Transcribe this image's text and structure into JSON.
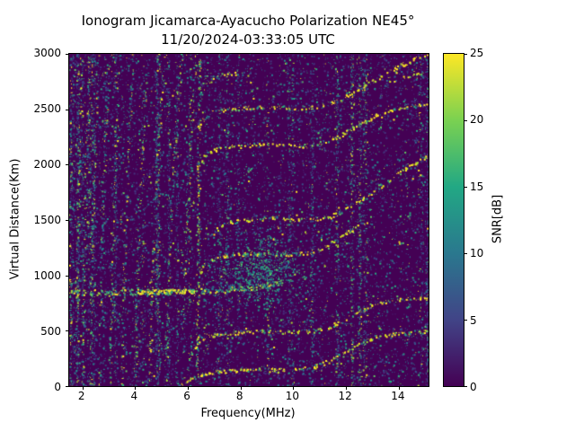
{
  "chart_data": {
    "type": "heatmap",
    "title": "Ionogram Jicamarca-Ayacucho Polarization NE45°",
    "subtitle": "11/20/2024-03:33:05 UTC",
    "xlabel": "Frequency(MHz)",
    "ylabel": "Virtual Distance(Km)",
    "xlim": [
      1.5,
      15.13
    ],
    "ylim": [
      0,
      3000
    ],
    "x_ticks": [
      2,
      4,
      6,
      8,
      10,
      12,
      14
    ],
    "x_tick_labels": [
      "2",
      "4",
      "6",
      "8",
      "10",
      "12",
      "14"
    ],
    "y_ticks": [
      0,
      500,
      1000,
      1500,
      2000,
      2500,
      3000
    ],
    "y_tick_labels": [
      "0",
      "500",
      "1000",
      "1500",
      "2000",
      "2500",
      "3000"
    ],
    "grid": false,
    "legend": "none",
    "colorbar": {
      "label": "SNR[dB]",
      "min": 0,
      "max": 25,
      "tick_labels": [
        "0",
        "5",
        "10",
        "15",
        "20",
        "25"
      ],
      "gradient": [
        "#440154",
        "#414487",
        "#2a788e",
        "#22a884",
        "#7ad151",
        "#fde725"
      ]
    },
    "background_color": "#440154",
    "palettes": {
      "noise": [
        [
          "#46327e",
          0.3
        ],
        [
          "#3b528b",
          0.25
        ],
        [
          "#2c728e",
          0.18
        ],
        [
          "#21918c",
          0.1
        ],
        [
          "#28ae80",
          0.07
        ],
        [
          "#5ec962",
          0.05
        ],
        [
          "#addc30",
          0.03
        ],
        [
          "#fde725",
          0.02
        ]
      ],
      "striation": [
        [
          "#fde725",
          0.18
        ],
        [
          "#a0da39",
          0.15
        ],
        [
          "#35b779",
          0.2
        ],
        [
          "#21918c",
          0.22
        ],
        [
          "#31688e",
          0.15
        ],
        [
          "#443983",
          0.1
        ]
      ],
      "trace": [
        [
          "#fde725",
          0.55
        ],
        [
          "#d2e21b",
          0.12
        ],
        [
          "#a0da39",
          0.08
        ],
        [
          "#5ec962",
          0.08
        ],
        [
          "#28ae80",
          0.07
        ],
        [
          "#2a788e",
          0.1
        ]
      ],
      "band": [
        [
          "#fde725",
          0.25
        ],
        [
          "#a0da39",
          0.15
        ],
        [
          "#5ec962",
          0.2
        ],
        [
          "#21918c",
          0.25
        ],
        [
          "#2c728e",
          0.15
        ]
      ],
      "blob": [
        [
          "#21918c",
          0.3
        ],
        [
          "#28ae80",
          0.25
        ],
        [
          "#35b779",
          0.2
        ],
        [
          "#2c728e",
          0.15
        ],
        [
          "#5ec962",
          0.1
        ]
      ]
    },
    "noise": {
      "seed": 1337,
      "base_density": 0.055,
      "stripe_count": 50
    },
    "striations": {
      "bases": [
        1.52,
        1.75,
        2.0,
        2.3,
        2.65,
        3.05,
        3.5,
        4.0,
        4.55,
        5.15,
        5.8,
        6.35
      ],
      "lean": [
        0.02,
        0.22,
        0.26,
        0.3,
        0.34,
        0.38,
        0.42,
        0.48,
        0.55,
        0.62,
        0.5,
        0.1
      ],
      "density": [
        0.5,
        0.3,
        0.3,
        0.32,
        0.32,
        0.34,
        0.34,
        0.36,
        0.36,
        0.38,
        0.3,
        0.55
      ]
    },
    "traces": [
      {
        "name": "echo-1",
        "palette": "trace",
        "density": 0.85,
        "jitter": 4,
        "points": [
          [
            5.75,
            10
          ],
          [
            6.0,
            45
          ],
          [
            6.25,
            90
          ],
          [
            6.6,
            118
          ],
          [
            7.1,
            135
          ],
          [
            7.9,
            148
          ],
          [
            8.8,
            152
          ],
          [
            9.6,
            147
          ],
          [
            10.2,
            152
          ],
          [
            10.8,
            180
          ],
          [
            11.4,
            235
          ],
          [
            12.0,
            315
          ],
          [
            12.6,
            400
          ],
          [
            13.1,
            450
          ],
          [
            13.7,
            472
          ],
          [
            14.3,
            483
          ],
          [
            14.9,
            492
          ],
          [
            15.1,
            497
          ]
        ]
      },
      {
        "name": "echo-2",
        "palette": "trace",
        "density": 0.8,
        "jitter": 4,
        "points": [
          [
            6.1,
            280
          ],
          [
            6.35,
            390
          ],
          [
            6.7,
            450
          ],
          [
            7.3,
            478
          ],
          [
            8.1,
            492
          ],
          [
            9.0,
            498
          ],
          [
            9.9,
            490
          ],
          [
            10.6,
            498
          ],
          [
            11.2,
            525
          ],
          [
            11.8,
            585
          ],
          [
            12.4,
            660
          ],
          [
            13.0,
            725
          ],
          [
            13.6,
            768
          ],
          [
            14.2,
            790
          ],
          [
            14.8,
            800
          ],
          [
            15.1,
            805
          ]
        ]
      },
      {
        "name": "e-band",
        "palette": "band",
        "density": 1.6,
        "jitter": 6,
        "points": [
          [
            1.5,
            848
          ],
          [
            2.2,
            850
          ],
          [
            3.0,
            852
          ],
          [
            3.8,
            854
          ],
          [
            4.6,
            856
          ],
          [
            5.4,
            858
          ],
          [
            6.2,
            860
          ],
          [
            7.0,
            866
          ],
          [
            7.8,
            878
          ],
          [
            8.5,
            895
          ],
          [
            9.1,
            920
          ],
          [
            9.6,
            948
          ]
        ]
      },
      {
        "name": "e-band-bright",
        "palette": "trace",
        "density": 1.4,
        "jitter": 4,
        "points": [
          [
            4.2,
            855
          ],
          [
            4.9,
            858
          ],
          [
            5.6,
            860
          ],
          [
            6.3,
            862
          ]
        ]
      },
      {
        "name": "echo-3",
        "palette": "trace",
        "density": 0.7,
        "jitter": 4,
        "points": [
          [
            6.35,
            980
          ],
          [
            6.6,
            1090
          ],
          [
            7.0,
            1155
          ],
          [
            7.6,
            1185
          ],
          [
            8.4,
            1198
          ],
          [
            9.2,
            1200
          ],
          [
            9.9,
            1192
          ],
          [
            10.5,
            1205
          ],
          [
            11.0,
            1245
          ],
          [
            11.5,
            1310
          ],
          [
            12.0,
            1390
          ],
          [
            12.5,
            1460
          ]
        ]
      },
      {
        "name": "echo-4",
        "palette": "trace",
        "density": 0.7,
        "jitter": 4,
        "points": [
          [
            6.9,
            1370
          ],
          [
            7.2,
            1450
          ],
          [
            7.7,
            1490
          ],
          [
            8.4,
            1510
          ],
          [
            9.2,
            1515
          ],
          [
            10.0,
            1502
          ],
          [
            10.8,
            1510
          ],
          [
            11.4,
            1535
          ],
          [
            12.0,
            1600
          ],
          [
            12.6,
            1690
          ],
          [
            13.2,
            1790
          ],
          [
            13.8,
            1890
          ],
          [
            14.4,
            1990
          ],
          [
            15.0,
            2070
          ],
          [
            15.1,
            2080
          ]
        ]
      },
      {
        "name": "echo-5",
        "palette": "trace",
        "density": 0.75,
        "jitter": 4,
        "points": [
          [
            6.3,
            1950
          ],
          [
            6.55,
            2060
          ],
          [
            6.9,
            2130
          ],
          [
            7.5,
            2160
          ],
          [
            8.3,
            2180
          ],
          [
            9.2,
            2185
          ],
          [
            10.0,
            2172
          ],
          [
            10.7,
            2182
          ],
          [
            11.3,
            2215
          ],
          [
            11.9,
            2285
          ],
          [
            12.5,
            2370
          ],
          [
            13.1,
            2445
          ],
          [
            13.7,
            2495
          ],
          [
            14.3,
            2525
          ],
          [
            14.9,
            2545
          ],
          [
            15.1,
            2552
          ]
        ]
      },
      {
        "name": "echo-6",
        "palette": "trace",
        "density": 0.7,
        "jitter": 4,
        "points": [
          [
            6.35,
            2330
          ],
          [
            6.6,
            2430
          ],
          [
            7.0,
            2485
          ],
          [
            7.7,
            2508
          ],
          [
            8.5,
            2522
          ],
          [
            9.4,
            2518
          ],
          [
            10.2,
            2512
          ],
          [
            10.9,
            2525
          ],
          [
            11.5,
            2565
          ],
          [
            12.1,
            2635
          ],
          [
            12.7,
            2720
          ],
          [
            13.3,
            2800
          ],
          [
            13.9,
            2880
          ],
          [
            14.5,
            2950
          ],
          [
            15.0,
            3000
          ]
        ]
      },
      {
        "name": "echo-top-left",
        "palette": "band",
        "density": 0.45,
        "jitter": 4,
        "points": [
          [
            6.5,
            2700
          ],
          [
            7.0,
            2780
          ],
          [
            7.6,
            2825
          ],
          [
            8.2,
            2848
          ]
        ]
      },
      {
        "name": "echo-top-right",
        "palette": "trace",
        "density": 0.4,
        "jitter": 4,
        "points": [
          [
            13.6,
            2745
          ],
          [
            14.2,
            2790
          ],
          [
            14.8,
            2830
          ],
          [
            15.1,
            2850
          ]
        ]
      }
    ],
    "blob": {
      "cx": 8.65,
      "cy": 1060,
      "sx": 0.8,
      "sy": 150,
      "count": 650
    }
  }
}
